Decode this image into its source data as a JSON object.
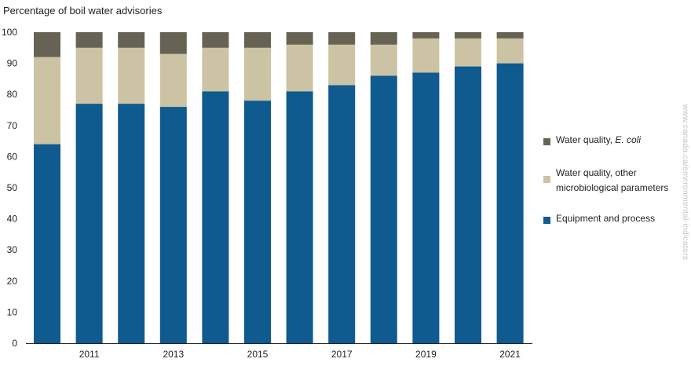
{
  "chart_data": {
    "type": "bar",
    "stacked": true,
    "ylabel": "Percentage of boil water advisories",
    "xlabel": "",
    "ylim": [
      0,
      100
    ],
    "yticks": [
      0,
      10,
      20,
      30,
      40,
      50,
      60,
      70,
      80,
      90,
      100
    ],
    "categories": [
      "2010",
      "2011",
      "2012",
      "2013",
      "2014",
      "2015",
      "2016",
      "2017",
      "2018",
      "2019",
      "2020",
      "2021"
    ],
    "xtick_labels": [
      "",
      "2011",
      "",
      "2013",
      "",
      "2015",
      "",
      "2017",
      "",
      "2019",
      "",
      "2021"
    ],
    "grid": false,
    "legend_position": "right",
    "series": [
      {
        "name": "Equipment and process",
        "color": "#0f5a8e",
        "values": [
          64,
          77,
          77,
          76,
          81,
          78,
          81,
          83,
          86,
          87,
          89,
          90
        ]
      },
      {
        "name": "Water quality, other microbiological parameters",
        "color": "#cbc3a3",
        "values": [
          28,
          18,
          18,
          17,
          14,
          17,
          15,
          13,
          10,
          11,
          9,
          8
        ]
      },
      {
        "name": "Water quality, E. coli",
        "color": "#666354",
        "values": [
          8,
          5,
          5,
          7,
          5,
          5,
          4,
          4,
          4,
          2,
          2,
          2
        ]
      }
    ]
  },
  "legend": {
    "ecoli_prefix": "Water quality, ",
    "ecoli_em": "E. coli",
    "other_line1": "Water quality, other",
    "other_line2": "microbiological parameters",
    "equipment": "Equipment and process"
  },
  "watermark": "www.canada.ca/environmental-indicators"
}
